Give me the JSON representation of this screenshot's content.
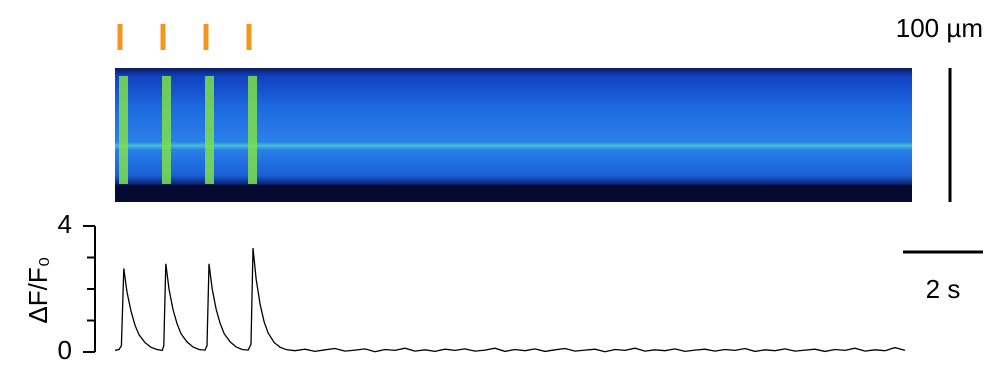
{
  "chart_data": {
    "type": "line",
    "y_label": "ΔF/F₀",
    "ylim": [
      0,
      4
    ],
    "yticks": [
      0,
      4
    ],
    "yminor_ticks": [
      1,
      2,
      3
    ],
    "xlim": [
      0,
      20
    ],
    "stimuli": [
      0.125,
      1.2,
      2.275,
      3.35
    ],
    "stimulus_color": "#f7941d",
    "scale_bar_x": {
      "value": 2,
      "label": "2 s"
    },
    "scale_bar_y": {
      "value": 100,
      "label": "100 µm"
    },
    "series": [
      {
        "color": "#000000",
        "x": [
          0,
          0.1,
          0.16,
          0.22,
          0.3,
          0.4,
          0.5,
          0.6,
          0.75,
          0.9,
          1.05,
          1.18,
          1.22,
          1.27,
          1.35,
          1.45,
          1.55,
          1.65,
          1.8,
          1.95,
          2.1,
          2.25,
          2.3,
          2.35,
          2.43,
          2.53,
          2.63,
          2.73,
          2.88,
          3.03,
          3.18,
          3.33,
          3.4,
          3.45,
          3.53,
          3.63,
          3.73,
          3.83,
          3.98,
          4.13,
          4.3,
          4.5,
          4.75,
          5,
          5.25,
          5.5,
          5.75,
          6,
          6.25,
          6.5,
          6.75,
          7,
          7.25,
          7.5,
          7.75,
          8,
          8.25,
          8.5,
          8.75,
          9,
          9.25,
          9.5,
          9.75,
          10,
          10.25,
          10.5,
          10.75,
          11,
          11.25,
          11.5,
          11.75,
          12,
          12.25,
          12.5,
          12.75,
          13,
          13.25,
          13.5,
          13.75,
          14,
          14.25,
          14.5,
          14.75,
          15,
          15.25,
          15.5,
          15.75,
          16,
          16.25,
          16.5,
          16.75,
          17,
          17.25,
          17.5,
          17.75,
          18,
          18.25,
          18.5,
          18.75,
          19,
          19.25,
          19.5,
          19.75
        ],
        "values": [
          0.05,
          0.08,
          0.2,
          2.65,
          1.9,
          1.3,
          0.85,
          0.55,
          0.3,
          0.15,
          0.08,
          0.05,
          0.2,
          2.8,
          2.0,
          1.35,
          0.9,
          0.58,
          0.32,
          0.16,
          0.08,
          0.06,
          0.2,
          2.8,
          2.0,
          1.35,
          0.9,
          0.58,
          0.32,
          0.16,
          0.08,
          0.06,
          0.25,
          3.3,
          2.3,
          1.5,
          0.95,
          0.6,
          0.3,
          0.15,
          0.07,
          0.04,
          0.09,
          0.02,
          0.07,
          0.11,
          0.03,
          0.06,
          0.1,
          0.01,
          0.08,
          0.05,
          0.12,
          0.03,
          0.07,
          0.02,
          0.09,
          0.05,
          0.1,
          0.03,
          0.06,
          0.12,
          0.02,
          0.08,
          0.04,
          0.1,
          0.02,
          0.07,
          0.11,
          0.03,
          0.06,
          0.09,
          0.01,
          0.08,
          0.05,
          0.12,
          0.03,
          0.07,
          0.04,
          0.1,
          0.02,
          0.06,
          0.09,
          0.03,
          0.08,
          0.05,
          0.11,
          0.02,
          0.07,
          0.04,
          0.1,
          0.03,
          0.06,
          0.09,
          0.02,
          0.08,
          0.05,
          0.12,
          0.03,
          0.07,
          0.04,
          0.14,
          0.05
        ]
      }
    ]
  }
}
